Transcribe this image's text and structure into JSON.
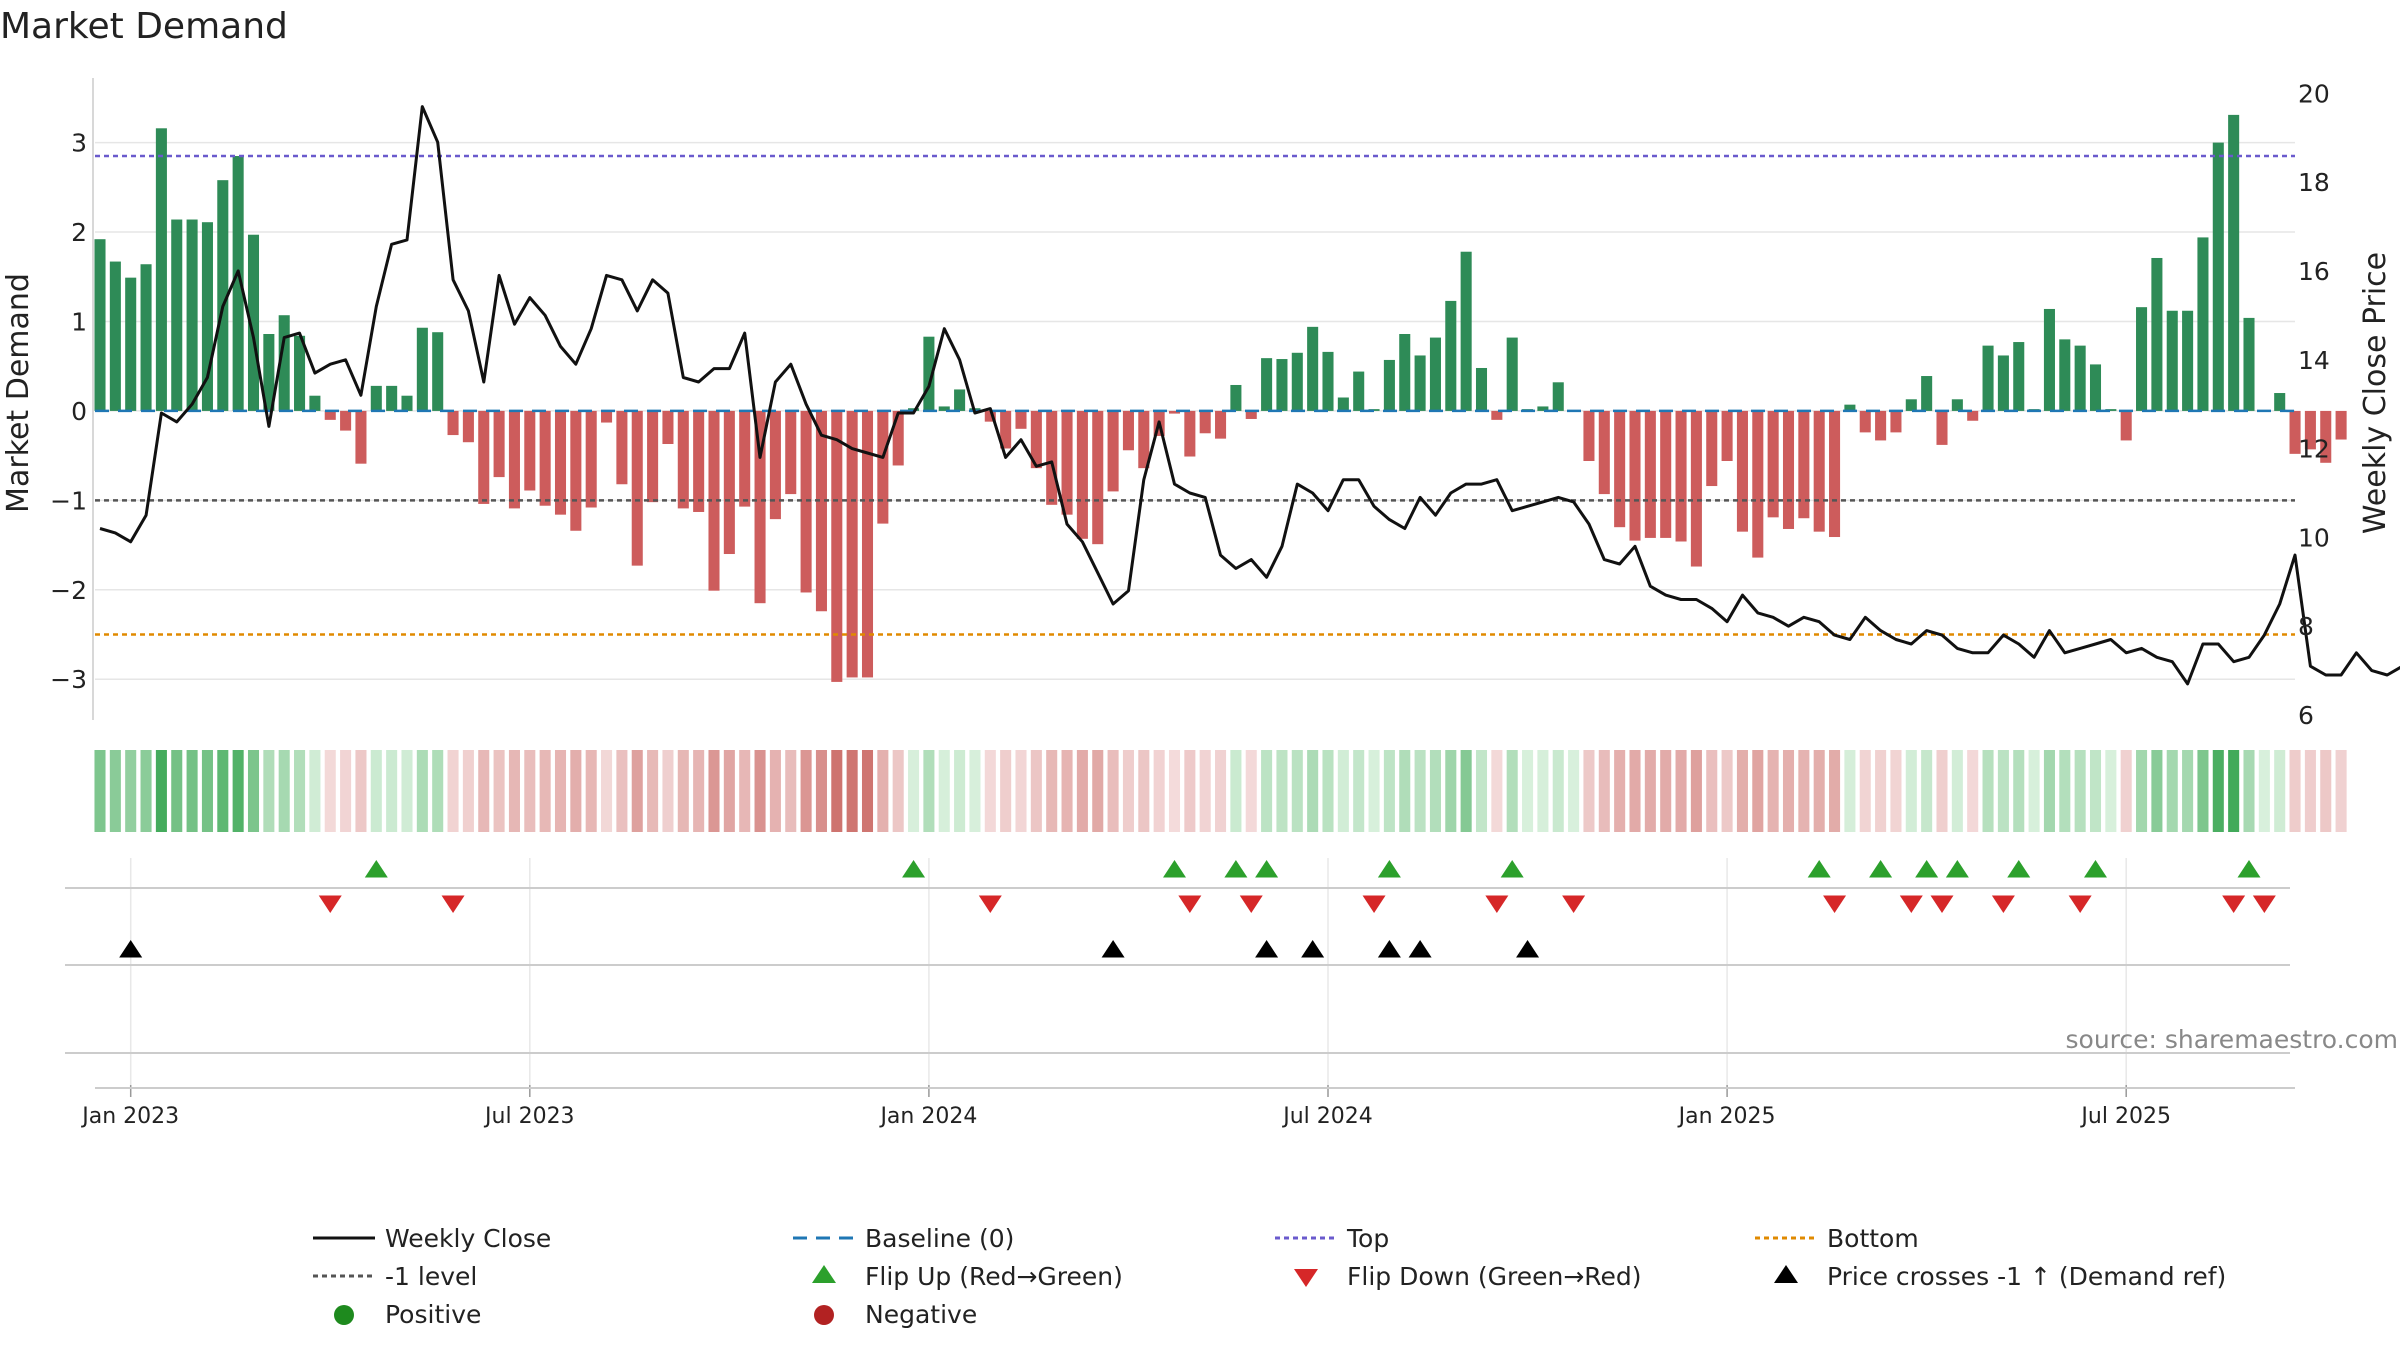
{
  "chart_data": {
    "type": "bar+line",
    "title": "Market Demand",
    "ylabel_left": "Market Demand",
    "ylabel_right": "Weekly Close Price",
    "ylim_left": [
      -3.4,
      3.7
    ],
    "ylim_right": [
      6,
      20.3
    ],
    "yticks_left": [
      3,
      2,
      1,
      0,
      -1,
      -2,
      -3
    ],
    "ytick_labels_left": [
      "3",
      "2",
      "1",
      "0",
      "−1",
      "−2",
      "−3"
    ],
    "yticks_right": [
      20,
      18,
      16,
      14,
      12,
      10,
      8,
      6
    ],
    "ytick_labels_right": [
      "20",
      "18",
      "16",
      "14",
      "12",
      "10",
      "8",
      "6"
    ],
    "x_labels": [
      "Jan 2023",
      "Jul 2023",
      "Jan 2024",
      "Jul 2024",
      "Jan 2025",
      "Jul 2025"
    ],
    "x_label_weeks": [
      0,
      26,
      52,
      78,
      104,
      130
    ],
    "start_week": -2,
    "reference_lines": {
      "top": 2.85,
      "bottom": -2.5,
      "minus_one": -1,
      "baseline": 0
    },
    "demand_values": [
      1.92,
      1.67,
      1.49,
      1.64,
      3.16,
      2.14,
      2.14,
      2.11,
      2.58,
      2.85,
      1.97,
      0.86,
      1.07,
      0.84,
      0.17,
      -0.1,
      -0.22,
      -0.59,
      0.28,
      0.28,
      0.17,
      0.93,
      0.88,
      -0.27,
      -0.35,
      -1.04,
      -0.74,
      -1.09,
      -0.89,
      -1.06,
      -1.16,
      -1.34,
      -1.08,
      -0.13,
      -0.82,
      -1.73,
      -1.02,
      -0.37,
      -1.09,
      -1.13,
      -2.01,
      -1.6,
      -1.07,
      -2.15,
      -1.21,
      -0.93,
      -2.03,
      -2.24,
      -3.03,
      -2.98,
      -2.98,
      -1.26,
      -0.61,
      0.03,
      0.83,
      0.05,
      0.24,
      0.03,
      -0.12,
      -0.42,
      -0.2,
      -0.64,
      -1.05,
      -1.16,
      -1.43,
      -1.49,
      -0.9,
      -0.44,
      -0.64,
      -0.28,
      -0.03,
      -0.51,
      -0.25,
      -0.31,
      0.29,
      -0.09,
      0.59,
      0.58,
      0.65,
      0.94,
      0.66,
      0.15,
      0.44,
      0.02,
      0.57,
      0.86,
      0.62,
      0.82,
      1.23,
      1.78,
      0.48,
      -0.1,
      0.82,
      0.02,
      0.05,
      0.32,
      0.01,
      -0.56,
      -0.93,
      -1.3,
      -1.45,
      -1.42,
      -1.42,
      -1.46,
      -1.74,
      -0.84,
      -0.56,
      -1.35,
      -1.64,
      -1.19,
      -1.32,
      -1.2,
      -1.35,
      -1.41,
      0.07,
      -0.24,
      -0.33,
      -0.24,
      0.13,
      0.39,
      -0.38,
      0.13,
      -0.11,
      0.73,
      0.62,
      0.77,
      0.02,
      1.14,
      0.8,
      0.73,
      0.52,
      0.02,
      -0.33,
      1.16,
      1.71,
      1.12,
      1.12,
      1.94,
      3.0,
      3.31,
      1.04,
      0.01,
      0.2,
      -0.48,
      -0.43,
      -0.58,
      -0.32
    ],
    "price_values": [
      10.2,
      10.1,
      9.9,
      10.5,
      12.8,
      12.6,
      13.0,
      13.6,
      15.2,
      16.0,
      14.5,
      12.5,
      14.5,
      14.6,
      13.7,
      13.9,
      14.0,
      13.2,
      15.2,
      16.6,
      16.7,
      19.7,
      18.9,
      15.8,
      15.1,
      13.5,
      15.9,
      14.8,
      15.4,
      15.0,
      14.3,
      13.9,
      14.7,
      15.9,
      15.8,
      15.1,
      15.8,
      15.5,
      13.6,
      13.5,
      13.8,
      13.8,
      14.6,
      11.8,
      13.5,
      13.9,
      13.0,
      12.3,
      12.2,
      12.0,
      11.9,
      11.8,
      12.8,
      12.8,
      13.4,
      14.7,
      14.0,
      12.8,
      12.9,
      11.8,
      12.2,
      11.6,
      11.7,
      10.3,
      9.9,
      9.2,
      8.5,
      8.8,
      11.3,
      12.6,
      11.2,
      11.0,
      10.9,
      9.6,
      9.3,
      9.5,
      9.1,
      9.8,
      11.2,
      11.0,
      10.6,
      11.3,
      11.3,
      10.7,
      10.4,
      10.2,
      10.9,
      10.5,
      11.0,
      11.2,
      11.2,
      11.3,
      10.6,
      10.7,
      10.8,
      10.9,
      10.8,
      10.3,
      9.5,
      9.4,
      9.8,
      8.9,
      8.7,
      8.6,
      8.6,
      8.4,
      8.1,
      8.7,
      8.3,
      8.2,
      8.0,
      8.2,
      8.1,
      7.8,
      7.7,
      8.2,
      7.9,
      7.7,
      7.6,
      7.9,
      7.8,
      7.5,
      7.4,
      7.4,
      7.8,
      7.6,
      7.3,
      7.9,
      7.4,
      7.5,
      7.6,
      7.7,
      7.4,
      7.5,
      7.3,
      7.2,
      6.7,
      7.6,
      7.6,
      7.2,
      7.3,
      7.8,
      8.5,
      9.6,
      7.1,
      6.9,
      6.9,
      7.4,
      7.0,
      6.9,
      7.1
    ],
    "flip_up_weeks": [
      16,
      51,
      68,
      72,
      74,
      82,
      90,
      110,
      114,
      117,
      119,
      123,
      128,
      138
    ],
    "flip_down_weeks": [
      13,
      21,
      56,
      69,
      73,
      81,
      89,
      94,
      111,
      116,
      118,
      122,
      127,
      137,
      139
    ],
    "cross_weeks": [
      0,
      64,
      74,
      77,
      82,
      84,
      91
    ],
    "source": "source: sharemaestro.com",
    "colors": {
      "positive_bar": "#2e8b57",
      "negative_bar": "#cd5c5c",
      "price_line": "#111111",
      "baseline": "#1f77b4",
      "top_line": "#6a5acd",
      "bottom_line": "#e08a00",
      "minus_one_line": "#555555",
      "flip_up": "#2ca02c",
      "flip_down": "#d62728",
      "cross": "#000000",
      "positive_dot": "#1e8a1e",
      "negative_dot": "#b22222"
    },
    "legend": [
      {
        "label": "Weekly Close",
        "marker": "solid-line",
        "color": "#111111"
      },
      {
        "label": "Baseline (0)",
        "marker": "dashed-line",
        "color": "#1f77b4"
      },
      {
        "label": "Top",
        "marker": "dotted-line",
        "color": "#6a5acd"
      },
      {
        "label": "Bottom",
        "marker": "dotted-line",
        "color": "#e08a00"
      },
      {
        "label": "-1 level",
        "marker": "dotted-line",
        "color": "#555555"
      },
      {
        "label": "Flip Up (Red→Green)",
        "marker": "triangle-up",
        "color": "#2ca02c"
      },
      {
        "label": "Flip Down (Green→Red)",
        "marker": "triangle-down",
        "color": "#d62728"
      },
      {
        "label": "Price crosses -1 ↑ (Demand ref)",
        "marker": "triangle-up",
        "color": "#000000"
      },
      {
        "label": "Positive",
        "marker": "circle",
        "color": "#1e8a1e"
      },
      {
        "label": "Negative",
        "marker": "circle",
        "color": "#b22222"
      }
    ]
  }
}
